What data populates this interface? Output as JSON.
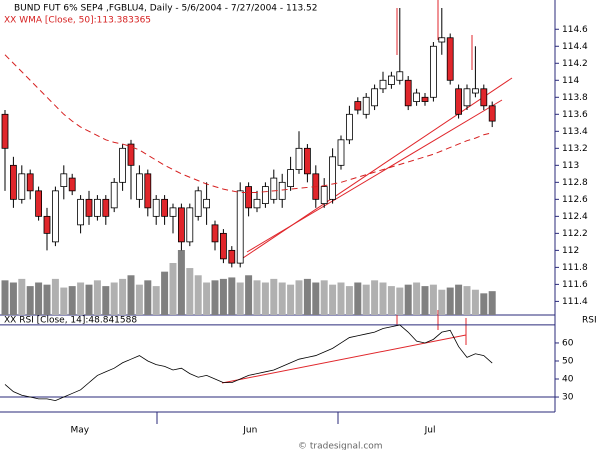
{
  "chart_data": {
    "type": "candlestick",
    "title": "BUND FUT 6% SEP4 ,FGBLU4, Daily - 5/6/2004 - 7/27/2004 - 113.52",
    "open": [
      113.6,
      113.0,
      112.6,
      112.9,
      112.7,
      112.4,
      112.1,
      112.75,
      112.85,
      112.3,
      112.6,
      112.4,
      112.6,
      112.5,
      112.8,
      113.25,
      112.6,
      112.9,
      112.4,
      112.6,
      112.4,
      112.5,
      112.1,
      112.4,
      112.5,
      112.3,
      112.2,
      112.0,
      111.85,
      112.75,
      112.5,
      112.55,
      112.6,
      112.6,
      112.75,
      112.95,
      113.2,
      112.9,
      112.55,
      112.6,
      113.0,
      113.3,
      113.75,
      113.6,
      113.7,
      113.9,
      113.95,
      114.0,
      114.0,
      113.75,
      113.8,
      113.8,
      114.45,
      114.5,
      113.9,
      113.7,
      113.85,
      113.9,
      113.7
    ],
    "high": [
      113.65,
      113.1,
      113.0,
      112.95,
      112.75,
      112.5,
      112.75,
      113.0,
      112.9,
      112.65,
      112.7,
      112.65,
      112.65,
      112.85,
      113.25,
      113.3,
      113.0,
      112.95,
      112.65,
      112.65,
      112.55,
      112.55,
      112.55,
      112.75,
      112.8,
      112.35,
      112.25,
      112.05,
      112.8,
      112.8,
      112.7,
      112.8,
      112.95,
      112.9,
      113.1,
      113.4,
      113.25,
      113.0,
      112.85,
      113.2,
      113.35,
      113.7,
      113.8,
      113.85,
      113.95,
      114.1,
      114.1,
      114.85,
      114.05,
      113.9,
      113.85,
      114.45,
      114.85,
      114.55,
      113.95,
      113.95,
      114.4,
      113.95,
      113.75
    ],
    "low": [
      112.7,
      112.5,
      112.55,
      112.6,
      112.35,
      112.0,
      112.05,
      112.6,
      112.65,
      112.2,
      112.3,
      112.35,
      112.3,
      112.45,
      112.7,
      112.6,
      112.5,
      112.4,
      112.3,
      112.3,
      112.2,
      112.0,
      112.05,
      112.35,
      112.3,
      112.0,
      111.85,
      111.8,
      111.8,
      112.4,
      112.45,
      112.5,
      112.55,
      112.5,
      112.7,
      112.9,
      112.8,
      112.5,
      112.5,
      112.55,
      112.95,
      113.25,
      113.6,
      113.55,
      113.65,
      113.85,
      113.9,
      113.95,
      113.65,
      113.7,
      113.7,
      113.75,
      114.3,
      113.95,
      113.55,
      113.65,
      113.8,
      113.65,
      113.45
    ],
    "close": [
      113.2,
      112.6,
      112.9,
      112.7,
      112.4,
      112.2,
      112.7,
      112.9,
      112.7,
      112.6,
      112.4,
      112.6,
      112.4,
      112.8,
      113.2,
      113.0,
      112.9,
      112.5,
      112.6,
      112.4,
      112.5,
      112.1,
      112.5,
      112.7,
      112.6,
      112.1,
      111.9,
      111.85,
      112.7,
      112.5,
      112.6,
      112.75,
      112.85,
      112.8,
      112.95,
      113.2,
      112.9,
      112.6,
      112.75,
      113.1,
      113.3,
      113.6,
      113.65,
      113.8,
      113.9,
      114.0,
      114.05,
      114.1,
      113.7,
      113.85,
      113.75,
      114.4,
      114.5,
      114.0,
      113.6,
      113.9,
      113.9,
      113.7,
      113.52
    ],
    "volume": [
      48,
      45,
      50,
      40,
      45,
      42,
      50,
      38,
      40,
      45,
      42,
      48,
      40,
      45,
      50,
      55,
      42,
      48,
      40,
      60,
      72,
      90,
      65,
      55,
      45,
      48,
      50,
      52,
      45,
      55,
      48,
      45,
      50,
      45,
      42,
      48,
      50,
      45,
      48,
      42,
      45,
      40,
      45,
      42,
      48,
      45,
      40,
      38,
      42,
      45,
      40,
      42,
      35,
      38,
      42,
      40,
      35,
      30,
      33
    ],
    "ylim": [
      111.24,
      114.85
    ],
    "yticks": [
      111.4,
      111.6,
      111.8,
      112,
      112.2,
      112.4,
      112.6,
      112.8,
      113,
      113.2,
      113.4,
      113.6,
      113.8,
      114,
      114.2,
      114.4,
      114.6
    ],
    "xticks": [
      {
        "value": 8.9,
        "label": "May"
      },
      {
        "value": 29.2,
        "label": "Jun"
      },
      {
        "value": 50.6,
        "label": "Jul"
      }
    ],
    "up_color": "#ffffff",
    "down_color": "#e0262b",
    "wma": {
      "name": "XX WMA [Close, 50]:113.383365",
      "color": "#d62020",
      "values": [
        114.3,
        114.2,
        114.1,
        114.0,
        113.9,
        113.8,
        113.7,
        113.6,
        113.52,
        113.45,
        113.4,
        113.35,
        113.3,
        113.27,
        113.25,
        113.22,
        113.18,
        113.12,
        113.06,
        113.0,
        112.95,
        112.9,
        112.86,
        112.82,
        112.78,
        112.75,
        112.72,
        112.7,
        112.68,
        112.68,
        112.68,
        112.69,
        112.7,
        112.71,
        112.72,
        112.73,
        112.74,
        112.75,
        112.76,
        112.78,
        112.8,
        112.83,
        112.86,
        112.89,
        112.92,
        112.95,
        112.98,
        113.01,
        113.04,
        113.07,
        113.1,
        113.13,
        113.17,
        113.21,
        113.25,
        113.29,
        113.32,
        113.36,
        113.383
      ]
    },
    "rsi": {
      "name": "XX RSI [Close, 14]:48.841588",
      "axis_label": "RSI",
      "color": "#000000",
      "values": [
        37,
        33,
        31,
        30,
        29,
        29,
        28,
        30,
        32,
        34,
        38,
        42,
        44,
        46,
        49,
        51,
        53,
        50,
        48,
        47,
        45,
        46,
        43,
        41,
        42,
        40,
        38,
        38,
        40,
        42,
        43,
        44,
        45,
        47,
        49,
        51,
        52,
        53,
        55,
        57,
        60,
        63,
        64,
        65,
        66,
        68,
        69,
        70,
        66,
        61,
        60,
        62,
        66,
        67,
        58,
        52,
        54,
        53,
        48.84
      ],
      "ylim": [
        21.7,
        74.4
      ],
      "yticks": [
        30,
        40,
        50,
        60
      ],
      "levels": [
        30,
        70
      ]
    },
    "credit": "© tradesignal.com"
  }
}
